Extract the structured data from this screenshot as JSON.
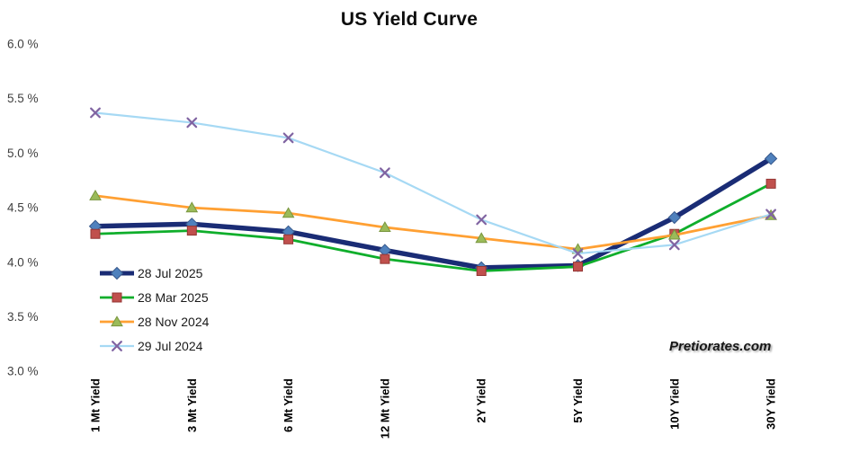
{
  "watermark": {
    "text": "Pretiorates.com"
  },
  "chart_data": {
    "type": "line",
    "title": "US Yield Curve",
    "xlabel": "",
    "ylabel": "",
    "grid": "off",
    "legend_position": "inside-lower-left",
    "ylim": [
      3.0,
      6.0
    ],
    "y_ticks": [
      {
        "value": 6.0,
        "label": "6.0 %"
      },
      {
        "value": 5.5,
        "label": "5.5 %"
      },
      {
        "value": 5.0,
        "label": "5.0 %"
      },
      {
        "value": 4.5,
        "label": "4.5 %"
      },
      {
        "value": 4.0,
        "label": "4.0 %"
      },
      {
        "value": 3.5,
        "label": "3.5 %"
      },
      {
        "value": 3.0,
        "label": "3.0 %"
      }
    ],
    "categories": [
      "1 Mt Yield",
      "3 Mt Yield",
      "6 Mt Yield",
      "12 Mt Yield",
      "2Y Yield",
      "5Y Yield",
      "10Y Yield",
      "30Y Yield"
    ],
    "series": [
      {
        "name": "28 Jul 2025",
        "values": [
          4.33,
          4.35,
          4.28,
          4.11,
          3.95,
          3.97,
          4.41,
          4.95
        ],
        "line_color": "#1A2C75",
        "line_width": 5.5,
        "marker": "diamond",
        "marker_fill": "#4F81BD",
        "marker_edge": "#38598C"
      },
      {
        "name": "28 Mar 2025",
        "values": [
          4.26,
          4.29,
          4.21,
          4.03,
          3.92,
          3.96,
          4.26,
          4.72
        ],
        "line_color": "#0FAE2B",
        "line_width": 2.8,
        "marker": "square",
        "marker_fill": "#C0504D",
        "marker_edge": "#943634"
      },
      {
        "name": "28 Nov 2024",
        "values": [
          4.61,
          4.5,
          4.45,
          4.32,
          4.22,
          4.12,
          4.25,
          4.43
        ],
        "line_color": "#FFA033",
        "line_width": 2.8,
        "marker": "triangle",
        "marker_fill": "#9BBB59",
        "marker_edge": "#79963F"
      },
      {
        "name": "29 Jul 2024",
        "values": [
          5.37,
          5.28,
          5.14,
          4.82,
          4.39,
          4.08,
          4.16,
          4.44
        ],
        "line_color": "#A6D9F4",
        "line_width": 2.2,
        "marker": "x",
        "marker_fill": "#8064A2",
        "marker_edge": "#8064A2"
      }
    ]
  }
}
